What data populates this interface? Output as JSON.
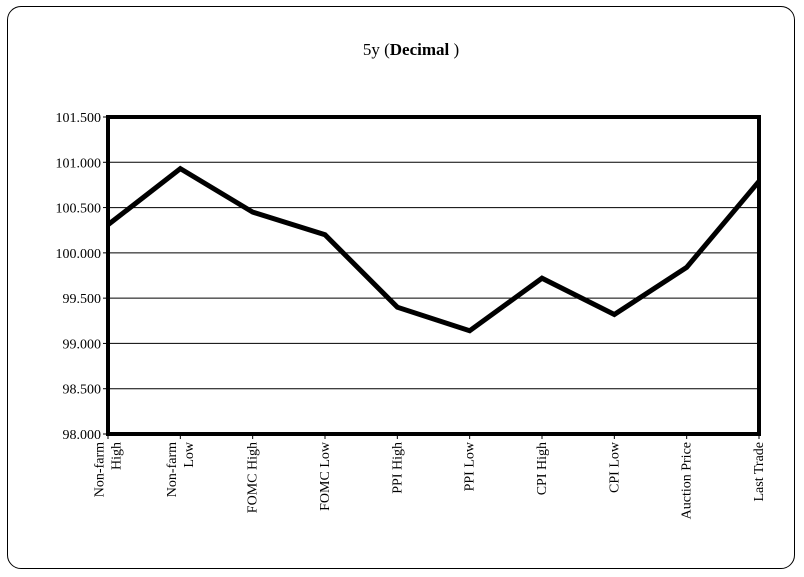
{
  "chart_data": {
    "type": "line",
    "title_prefix": "5y (",
    "title_bold": "Decimal",
    "title_suffix": " )",
    "xlabel": "",
    "ylabel": "",
    "categories": [
      [
        "Non-farm",
        "High"
      ],
      [
        "Non-farm",
        "Low"
      ],
      [
        "FOMC High"
      ],
      [
        "FOMC Low"
      ],
      [
        "PPI High"
      ],
      [
        "PPI Low"
      ],
      [
        "CPI High"
      ],
      [
        "CPI Low"
      ],
      [
        "Auction Price"
      ],
      [
        "Last Trade"
      ]
    ],
    "series": [
      {
        "values": [
          100.31,
          100.93,
          100.45,
          100.2,
          99.4,
          99.14,
          99.72,
          99.32,
          99.84,
          100.79
        ],
        "color": "#000000"
      }
    ],
    "ylim": [
      98.0,
      101.5
    ],
    "yticks": [
      "98.000",
      "98.500",
      "99.000",
      "99.500",
      "100.000",
      "100.500",
      "101.000",
      "101.500"
    ],
    "grid": true,
    "legend": "none"
  }
}
